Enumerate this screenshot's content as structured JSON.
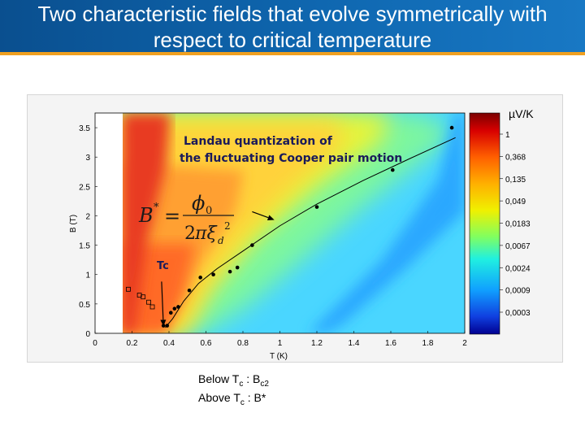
{
  "slide": {
    "title": "Two characteristic fields that evolve symmetrically with respect to critical temperature",
    "caption": {
      "line1": {
        "text": "Below T",
        "sub1": "c",
        "mid": " : B",
        "sub2": "c2",
        "tail": ""
      },
      "line2": {
        "text": "Above T",
        "sub1": "c",
        "mid": " : B*",
        "sub2": "",
        "tail": ""
      }
    }
  },
  "colors": {
    "header_blue": "#0f67b0",
    "header_accent": "#f0a020",
    "curve": "#000000"
  },
  "chart_data": {
    "type": "heatmap",
    "xlabel": "T (K)",
    "ylabel": "B (T)",
    "xlim": [
      0,
      2
    ],
    "ylim": [
      0,
      3.75
    ],
    "x_ticks": [
      "0",
      "0.2",
      "0.4",
      "0.6",
      "0.8",
      "1",
      "1.2",
      "1.4",
      "1.6",
      "1.8",
      "2"
    ],
    "y_ticks": [
      "0",
      "0.5",
      "1",
      "1.5",
      "2",
      "2.5",
      "3",
      "3.5"
    ],
    "colorbar": {
      "unit": "µV/K",
      "tick_labels": [
        "1",
        "0,368",
        "0,135",
        "0,049",
        "0,0183",
        "0,0067",
        "0,0024",
        "0,0009",
        "0,0003"
      ]
    },
    "annotations": {
      "landau": [
        "Landau quantization of",
        "the fluctuating Cooper pair motion"
      ],
      "tc_label": "Tc",
      "formula": "B* = φ0 / 2πξd²"
    },
    "series": [
      {
        "marker": "filled",
        "x": [
          0.37,
          0.39,
          0.41,
          0.43,
          0.45,
          0.51,
          0.57,
          0.64,
          0.73,
          0.77,
          0.85,
          1.2,
          1.61,
          1.93
        ],
        "y": [
          0.13,
          0.13,
          0.35,
          0.42,
          0.45,
          0.73,
          0.95,
          1.0,
          1.05,
          1.12,
          1.5,
          2.15,
          2.78,
          3.5
        ]
      },
      {
        "marker": "open",
        "x": [
          0.18,
          0.24,
          0.26,
          0.29,
          0.31
        ],
        "y": [
          0.75,
          0.65,
          0.62,
          0.53,
          0.45
        ]
      }
    ],
    "fit_curve": {
      "x": [
        0.38,
        0.42,
        0.48,
        0.56,
        0.66,
        0.8,
        1.0,
        1.2,
        1.45,
        1.7,
        1.95
      ],
      "y": [
        0.1,
        0.25,
        0.55,
        0.85,
        1.1,
        1.4,
        1.83,
        2.2,
        2.6,
        2.97,
        3.33
      ]
    },
    "tc_arrow": {
      "x_from": 0.36,
      "y_from": 0.88,
      "x_to": 0.37,
      "y_to": 0.12
    },
    "formula_arrow": {
      "x_from": 0.85,
      "y_from": 2.07,
      "x_to": 0.97,
      "y_to": 1.93
    }
  }
}
